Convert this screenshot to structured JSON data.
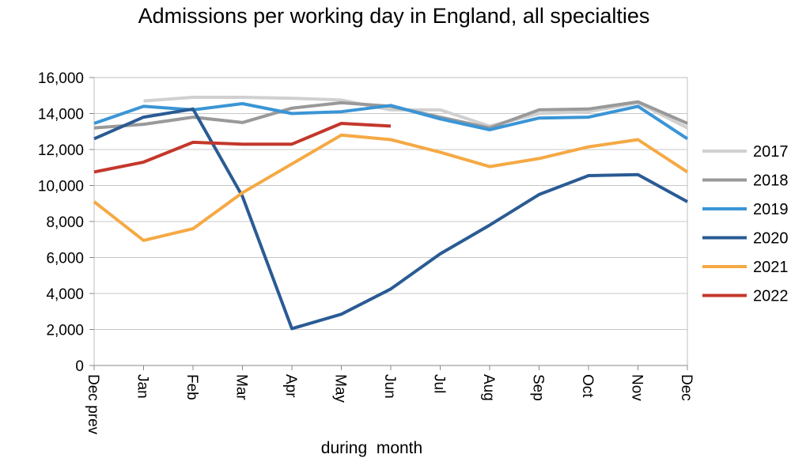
{
  "chart_data": {
    "type": "line",
    "title": "Admissions per working day in England, all specialties",
    "xlabel": "during  month",
    "ylabel": "",
    "ylim": [
      0,
      16000
    ],
    "yticks": [
      0,
      2000,
      4000,
      6000,
      8000,
      10000,
      12000,
      14000,
      16000
    ],
    "ytick_labels": [
      "0",
      "2,000",
      "4,000",
      "6,000",
      "8,000",
      "10,000",
      "12,000",
      "14,000",
      "16,000"
    ],
    "categories": [
      "Dec prev",
      "Jan",
      "Feb",
      "Mar",
      "Apr",
      "May",
      "Jun",
      "Jul",
      "Aug",
      "Sep",
      "Oct",
      "Nov",
      "Dec"
    ],
    "grid": true,
    "legend_position": "right",
    "series": [
      {
        "name": "2017",
        "color": "#d0d0d0",
        "values": [
          null,
          14700,
          14900,
          14900,
          14850,
          14750,
          14200,
          14200,
          13300,
          14000,
          14100,
          14600,
          13200
        ]
      },
      {
        "name": "2018",
        "color": "#999999",
        "values": [
          13200,
          13400,
          13800,
          13500,
          14300,
          14600,
          14400,
          13800,
          13200,
          14200,
          14250,
          14650,
          13450
        ]
      },
      {
        "name": "2019",
        "color": "#3a95d6",
        "values": [
          13450,
          14400,
          14200,
          14550,
          14000,
          14100,
          14450,
          13700,
          13100,
          13750,
          13800,
          14400,
          12600
        ]
      },
      {
        "name": "2020",
        "color": "#2a5b93",
        "values": [
          12600,
          13800,
          14250,
          9400,
          2050,
          2850,
          4250,
          6200,
          7800,
          9500,
          10550,
          10600,
          9100
        ]
      },
      {
        "name": "2021",
        "color": "#f5a944",
        "values": [
          9100,
          6950,
          7600,
          9600,
          11200,
          12800,
          12550,
          11850,
          11050,
          11500,
          12150,
          12550,
          10750
        ]
      },
      {
        "name": "2022",
        "color": "#c4372b",
        "values": [
          10750,
          11300,
          12400,
          12300,
          12300,
          13450,
          13300,
          null,
          null,
          null,
          null,
          null,
          null
        ]
      }
    ]
  }
}
